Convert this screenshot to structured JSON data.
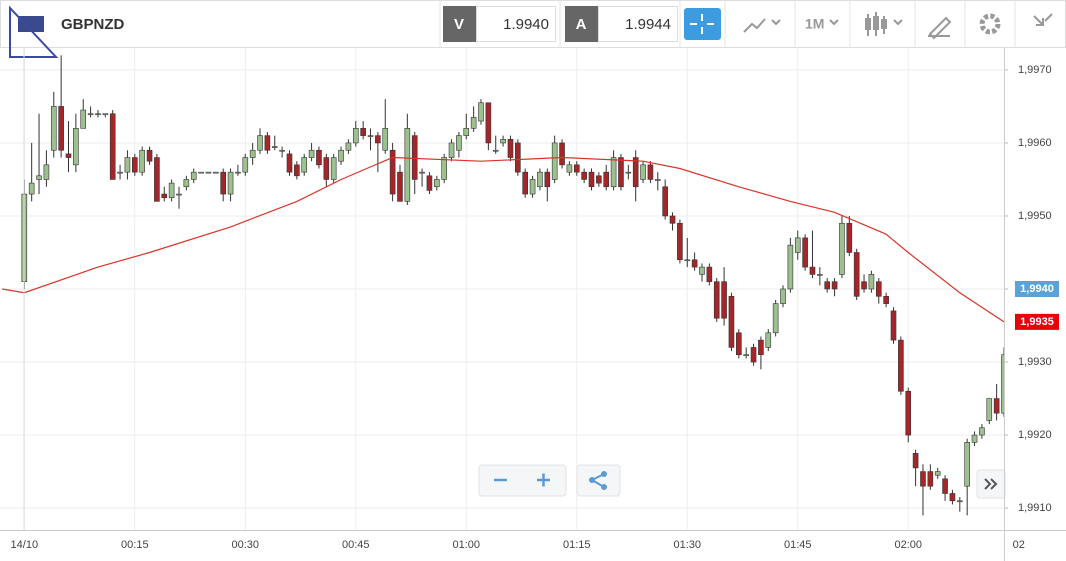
{
  "toolbar": {
    "symbol": "GBPNZD",
    "bid_label": "V",
    "bid": "1.9940",
    "ask_label": "A",
    "ask": "1.9944",
    "timeframe": "1M"
  },
  "chart_data": {
    "type": "candlestick",
    "xlim": [
      -3.3,
      133
    ],
    "ylim": [
      1.9907,
      1.9973
    ],
    "xticks": [
      {
        "value": 0,
        "label": "14/10"
      },
      {
        "value": 15,
        "label": "00:15"
      },
      {
        "value": 30,
        "label": "00:30"
      },
      {
        "value": 45,
        "label": "00:45"
      },
      {
        "value": 60,
        "label": "01:00"
      },
      {
        "value": 75,
        "label": "01:15"
      },
      {
        "value": 90,
        "label": "01:30"
      },
      {
        "value": 105,
        "label": "01:45"
      },
      {
        "value": 120,
        "label": "02:00"
      },
      {
        "value": 135,
        "label": "02"
      }
    ],
    "yticks": [
      {
        "value": 1.991,
        "label": "1,9910"
      },
      {
        "value": 1.992,
        "label": "1,9920"
      },
      {
        "value": 1.993,
        "label": "1,9930"
      },
      {
        "value": 1.994,
        "label": "1,9940"
      },
      {
        "value": 1.995,
        "label": "1,9950"
      },
      {
        "value": 1.996,
        "label": "1,9960"
      },
      {
        "value": 1.997,
        "label": "1,9970"
      }
    ],
    "grid": true,
    "up_color": "#9cc08e",
    "down_color": "#a3272a",
    "candles": {
      "x": [
        0,
        1,
        2,
        3,
        4,
        5,
        6,
        7,
        8,
        9,
        10,
        11,
        12,
        13,
        14,
        15,
        16,
        17,
        18,
        19,
        20,
        21,
        22,
        23,
        24,
        25,
        26,
        27,
        28,
        29,
        30,
        31,
        32,
        33,
        34,
        35,
        36,
        37,
        38,
        39,
        40,
        41,
        42,
        43,
        44,
        45,
        46,
        47,
        48,
        49,
        50,
        51,
        52,
        53,
        54,
        55,
        56,
        57,
        58,
        59,
        60,
        61,
        62,
        63,
        64,
        65,
        66,
        67,
        68,
        69,
        70,
        71,
        72,
        73,
        74,
        75,
        76,
        77,
        78,
        79,
        80,
        81,
        82,
        83,
        84,
        85,
        86,
        87,
        88,
        89,
        90,
        91,
        92,
        93,
        94,
        95,
        96,
        97,
        98,
        99,
        100,
        101,
        102,
        103,
        104,
        105,
        106,
        107,
        108,
        109,
        110,
        111,
        112,
        113,
        114,
        115,
        116,
        117,
        118,
        119,
        120,
        121,
        122,
        123,
        124,
        125,
        126,
        127,
        128,
        129,
        130,
        131,
        132,
        133
      ],
      "open": [
        1.9941,
        1.9953,
        1.9955,
        1.9955,
        1.9959,
        1.9965,
        1.99585,
        1.9957,
        1.9962,
        1.9964,
        1.9964,
        1.9964,
        1.9964,
        1.9956,
        1.9956,
        1.9958,
        1.9956,
        1.9959,
        1.9958,
        1.9953,
        1.99525,
        1.9953,
        1.9954,
        1.9955,
        1.9956,
        1.9956,
        1.9956,
        1.9956,
        1.9953,
        1.9956,
        1.9956,
        1.9958,
        1.9959,
        1.9961,
        1.99595,
        1.9959,
        1.99585,
        1.9957,
        1.9956,
        1.9958,
        1.9959,
        1.9958,
        1.9955,
        1.99575,
        1.9959,
        1.996,
        1.9962,
        1.9961,
        1.9961,
        1.9959,
        1.9959,
        1.9956,
        1.9952,
        1.9961,
        1.9956,
        1.99555,
        1.9954,
        1.9955,
        1.9958,
        1.9959,
        1.9961,
        1.9962,
        1.9963,
        1.99655,
        1.9959,
        1.996,
        1.99605,
        1.996,
        1.9956,
        1.9953,
        1.9954,
        1.9956,
        1.9955,
        1.996,
        1.9956,
        1.9957,
        1.9956,
        1.9956,
        1.99555,
        1.9956,
        1.9954,
        1.9958,
        1.9956,
        1.9958,
        1.9955,
        1.9957,
        1.9955,
        1.9954,
        1.995,
        1.9949,
        1.9944,
        1.9944,
        1.9942,
        1.9943,
        1.9941,
        1.9941,
        1.9939,
        1.9934,
        1.9931,
        1.9932,
        1.9933,
        1.9932,
        1.9934,
        1.9938,
        1.994,
        1.9945,
        1.9947,
        1.9943,
        1.9942,
        1.9941,
        1.9941,
        1.9942,
        1.9949,
        1.9945,
        1.9941,
        1.994,
        1.9941,
        1.9939,
        1.9937,
        1.9933,
        1.9926,
        1.99175,
        1.9915,
        1.9915,
        1.99145,
        1.9914,
        1.9912,
        1.9911,
        1.9913,
        1.9919,
        1.992,
        1.9922,
        1.9925,
        1.9923
      ],
      "high": [
        1.9955,
        1.996,
        1.9964,
        1.9959,
        1.9967,
        1.9972,
        1.9963,
        1.9964,
        1.9966,
        1.9965,
        1.99645,
        1.9964,
        1.99645,
        1.9957,
        1.9959,
        1.99585,
        1.99595,
        1.99595,
        1.99585,
        1.9954,
        1.9955,
        1.9954,
        1.99555,
        1.99565,
        1.9956,
        1.9956,
        1.9956,
        1.99565,
        1.99565,
        1.9957,
        1.99585,
        1.996,
        1.9962,
        1.99615,
        1.9961,
        1.99595,
        1.9959,
        1.99575,
        1.99585,
        1.996,
        1.99595,
        1.99585,
        1.99585,
        1.99595,
        1.99605,
        1.9963,
        1.9963,
        1.9962,
        1.99615,
        1.9966,
        1.996,
        1.9957,
        1.9964,
        1.99615,
        1.99565,
        1.9956,
        1.99555,
        1.99585,
        1.99605,
        1.99615,
        1.9964,
        1.9965,
        1.9966,
        1.99655,
        1.9961,
        1.9961,
        1.9961,
        1.99605,
        1.99565,
        1.99555,
        1.99565,
        1.99565,
        1.9961,
        1.99605,
        1.99575,
        1.99575,
        1.99565,
        1.99565,
        1.9956,
        1.9957,
        1.9959,
        1.99585,
        1.9957,
        1.9959,
        1.99575,
        1.99575,
        1.9956,
        1.9955,
        1.99505,
        1.99495,
        1.9947,
        1.9945,
        1.99435,
        1.99435,
        1.99415,
        1.9943,
        1.99395,
        1.99345,
        1.9932,
        1.99325,
        1.99335,
        1.99345,
        1.99385,
        1.99405,
        1.9947,
        1.9948,
        1.99475,
        1.9948,
        1.9943,
        1.99415,
        1.99415,
        1.995,
        1.995,
        1.99455,
        1.9942,
        1.99425,
        1.99415,
        1.99395,
        1.99375,
        1.99335,
        1.99265,
        1.9918,
        1.9916,
        1.9916,
        1.99155,
        1.99145,
        1.99125,
        1.99115,
        1.99195,
        1.99205,
        1.99215,
        1.9925,
        1.9927,
        1.9932
      ],
      "low": [
        1.994,
        1.9952,
        1.9953,
        1.9954,
        1.9958,
        1.9958,
        1.9956,
        1.9956,
        1.9962,
        1.99635,
        1.99635,
        1.99635,
        1.9955,
        1.9955,
        1.9955,
        1.99555,
        1.99555,
        1.9957,
        1.9952,
        1.9952,
        1.9952,
        1.9951,
        1.99535,
        1.99545,
        1.9956,
        1.9956,
        1.9956,
        1.9952,
        1.9952,
        1.99555,
        1.99555,
        1.9957,
        1.99585,
        1.99585,
        1.9959,
        1.9958,
        1.99555,
        1.9955,
        1.99555,
        1.99575,
        1.99565,
        1.9954,
        1.99545,
        1.9957,
        1.99585,
        1.99595,
        1.99605,
        1.9959,
        1.9956,
        1.99585,
        1.9952,
        1.9952,
        1.99515,
        1.9953,
        1.9954,
        1.9953,
        1.99535,
        1.99545,
        1.99575,
        1.9958,
        1.99605,
        1.99615,
        1.99625,
        1.9959,
        1.99585,
        1.99595,
        1.99575,
        1.99555,
        1.99525,
        1.99525,
        1.99535,
        1.9952,
        1.99545,
        1.99565,
        1.99555,
        1.99555,
        1.99545,
        1.99535,
        1.9954,
        1.99535,
        1.99535,
        1.99535,
        1.9955,
        1.9952,
        1.99545,
        1.99545,
        1.99535,
        1.99495,
        1.9948,
        1.99435,
        1.9943,
        1.99425,
        1.9941,
        1.99405,
        1.99355,
        1.9935,
        1.99315,
        1.99305,
        1.99305,
        1.99295,
        1.9929,
        1.99315,
        1.99335,
        1.99375,
        1.99395,
        1.9944,
        1.99425,
        1.99415,
        1.99405,
        1.99395,
        1.9939,
        1.99415,
        1.99445,
        1.99385,
        1.99395,
        1.99395,
        1.9938,
        1.99375,
        1.99325,
        1.99255,
        1.9919,
        1.9913,
        1.9909,
        1.99125,
        1.9914,
        1.9911,
        1.99105,
        1.99095,
        1.9909,
        1.99185,
        1.99195,
        1.99215,
        1.9922,
        1.99225
      ],
      "close": [
        1.9953,
        1.99545,
        1.99555,
        1.9957,
        1.9965,
        1.9959,
        1.9958,
        1.9962,
        1.99645,
        1.9964,
        1.9964,
        1.9964,
        1.9955,
        1.9956,
        1.9958,
        1.9956,
        1.9959,
        1.99575,
        1.9952,
        1.99525,
        1.99545,
        1.9953,
        1.9955,
        1.9956,
        1.9956,
        1.9956,
        1.9956,
        1.9953,
        1.9956,
        1.9956,
        1.9958,
        1.9959,
        1.9961,
        1.9959,
        1.99595,
        1.9959,
        1.9956,
        1.99555,
        1.9958,
        1.9959,
        1.9957,
        1.9955,
        1.9958,
        1.9959,
        1.996,
        1.9962,
        1.9961,
        1.9961,
        1.996,
        1.9962,
        1.9953,
        1.9952,
        1.9962,
        1.9955,
        1.9956,
        1.99535,
        1.9955,
        1.9958,
        1.996,
        1.9961,
        1.9962,
        1.99635,
        1.99655,
        1.996,
        1.9959,
        1.99605,
        1.9958,
        1.9956,
        1.9953,
        1.9955,
        1.9956,
        1.9954,
        1.996,
        1.9957,
        1.9957,
        1.9956,
        1.9955,
        1.9954,
        1.99545,
        1.9954,
        1.9958,
        1.9954,
        1.9956,
        1.9954,
        1.9957,
        1.9955,
        1.9955,
        1.995,
        1.9949,
        1.9944,
        1.9944,
        1.9943,
        1.9943,
        1.9941,
        1.9936,
        1.9936,
        1.9932,
        1.9931,
        1.9931,
        1.993,
        1.9931,
        1.9934,
        1.9938,
        1.994,
        1.9946,
        1.9947,
        1.9943,
        1.9942,
        1.9942,
        1.994,
        1.994,
        1.9949,
        1.9945,
        1.9939,
        1.994,
        1.9942,
        1.9939,
        1.9938,
        1.9933,
        1.9926,
        1.992,
        1.99155,
        1.9913,
        1.9913,
        1.9915,
        1.9912,
        1.9911,
        1.9911,
        1.9919,
        1.992,
        1.9921,
        1.9925,
        1.9923,
        1.9931
      ]
    },
    "ma": {
      "color": "#d9342b",
      "x": [
        -3,
        0,
        10,
        17,
        28,
        37,
        43,
        50,
        62,
        73,
        84,
        89,
        97,
        104,
        110,
        117,
        120,
        127,
        133
      ],
      "values": [
        1.994,
        1.99395,
        1.9943,
        1.9945,
        1.99485,
        1.9952,
        1.9955,
        1.9958,
        1.99575,
        1.9958,
        1.99575,
        1.99565,
        1.9954,
        1.9952,
        1.99505,
        1.99475,
        1.9945,
        1.99395,
        1.99355
      ]
    },
    "price_tags": [
      {
        "value": 1.994,
        "label": "1,9940",
        "color": "#5ba3d6"
      },
      {
        "value": 1.99355,
        "label": "1,9935",
        "color": "#e8000b"
      }
    ]
  }
}
